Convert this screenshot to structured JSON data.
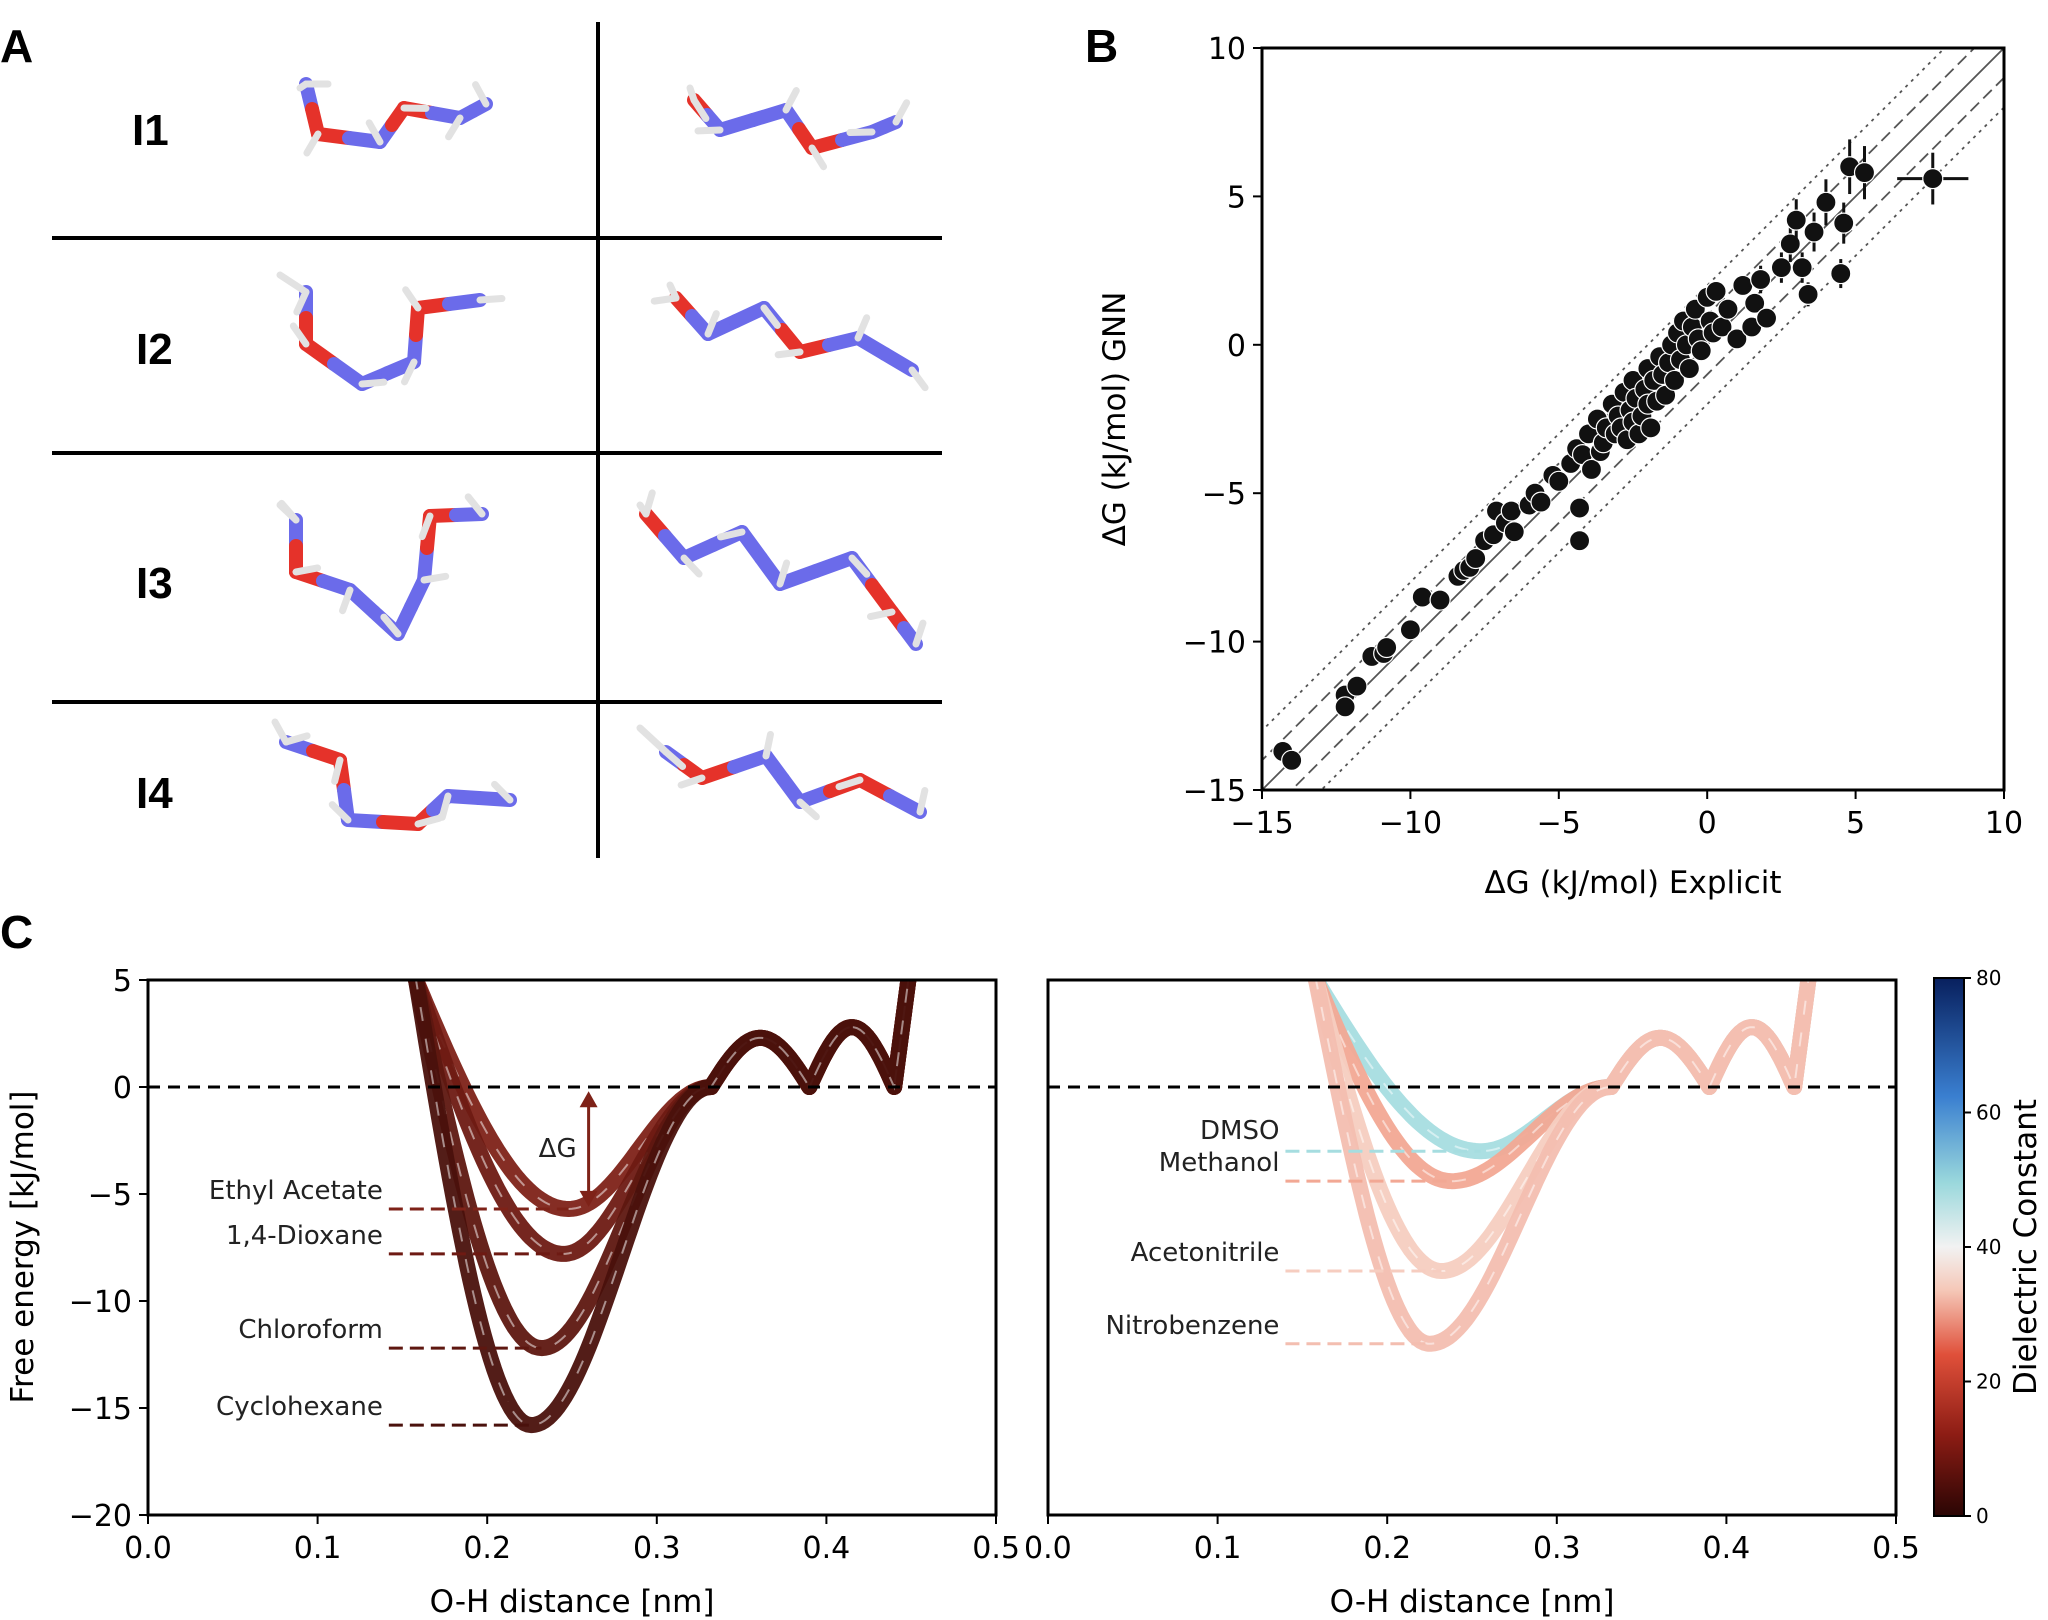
{
  "panels": {
    "a": "A",
    "b": "B",
    "c": "C"
  },
  "molecules": {
    "rows": [
      "I1",
      "I2",
      "I3",
      "I4"
    ],
    "colors": {
      "carbon": "#6b6bea",
      "oxygen": "#e5322a",
      "hydrogen": "#e2e2e2"
    }
  },
  "chart_data": [
    {
      "type": "scatter",
      "id": "B",
      "xlabel": "ΔG (kJ/mol) Explicit",
      "ylabel": "ΔG (kJ/mol) GNN",
      "xlim": [
        -15,
        10
      ],
      "ylim": [
        -15,
        10
      ],
      "xticks": [
        -15,
        -10,
        -5,
        0,
        5,
        10
      ],
      "yticks": [
        -15,
        -10,
        -5,
        0,
        5,
        10
      ],
      "xtick_labels": [
        "−15",
        "−10",
        "−5",
        "0",
        "5",
        "10"
      ],
      "ytick_labels": [
        "−15",
        "−10",
        "−5",
        "0",
        "5",
        "10"
      ],
      "reference_lines": {
        "identity": 0,
        "dashed_offset": 1,
        "dotted_offset": 2
      },
      "points": [
        [
          -14.3,
          -13.7
        ],
        [
          -14.0,
          -14.0
        ],
        [
          -12.2,
          -11.8
        ],
        [
          -12.2,
          -12.2
        ],
        [
          -11.8,
          -11.5
        ],
        [
          -11.3,
          -10.5
        ],
        [
          -10.9,
          -10.4
        ],
        [
          -10.8,
          -10.2
        ],
        [
          -10.0,
          -9.6
        ],
        [
          -9.6,
          -8.5
        ],
        [
          -9.0,
          -8.6
        ],
        [
          -8.4,
          -7.8
        ],
        [
          -8.2,
          -7.6
        ],
        [
          -8.0,
          -7.5
        ],
        [
          -7.8,
          -7.2
        ],
        [
          -7.5,
          -6.6
        ],
        [
          -7.2,
          -6.4
        ],
        [
          -7.1,
          -5.6
        ],
        [
          -6.8,
          -6.0
        ],
        [
          -6.6,
          -5.6
        ],
        [
          -6.5,
          -6.3
        ],
        [
          -6.0,
          -5.4
        ],
        [
          -5.8,
          -5.0
        ],
        [
          -5.6,
          -5.3
        ],
        [
          -5.2,
          -4.4
        ],
        [
          -5.0,
          -4.6
        ],
        [
          -4.6,
          -4.0
        ],
        [
          -4.4,
          -3.5
        ],
        [
          -4.3,
          -6.6
        ],
        [
          -4.3,
          -5.5
        ],
        [
          -4.2,
          -3.7
        ],
        [
          -4.0,
          -3.0
        ],
        [
          -3.9,
          -4.2
        ],
        [
          -3.7,
          -2.5
        ],
        [
          -3.6,
          -3.6
        ],
        [
          -3.5,
          -3.3
        ],
        [
          -3.4,
          -2.8
        ],
        [
          -3.2,
          -2.0
        ],
        [
          -3.1,
          -3.0
        ],
        [
          -3.0,
          -2.4
        ],
        [
          -2.9,
          -2.8
        ],
        [
          -2.8,
          -1.6
        ],
        [
          -2.7,
          -3.2
        ],
        [
          -2.6,
          -2.2
        ],
        [
          -2.5,
          -1.2
        ],
        [
          -2.5,
          -2.6
        ],
        [
          -2.4,
          -1.8
        ],
        [
          -2.3,
          -3.0
        ],
        [
          -2.2,
          -2.4
        ],
        [
          -2.1,
          -1.5
        ],
        [
          -2.0,
          -2.0
        ],
        [
          -2.0,
          -0.8
        ],
        [
          -1.9,
          -2.8
        ],
        [
          -1.8,
          -1.2
        ],
        [
          -1.7,
          -1.9
        ],
        [
          -1.6,
          -0.4
        ],
        [
          -1.5,
          -1.0
        ],
        [
          -1.4,
          -1.7
        ],
        [
          -1.3,
          -0.6
        ],
        [
          -1.2,
          0.0
        ],
        [
          -1.1,
          -1.2
        ],
        [
          -1.0,
          0.4
        ],
        [
          -0.9,
          -0.5
        ],
        [
          -0.8,
          0.8
        ],
        [
          -0.7,
          0.0
        ],
        [
          -0.6,
          -0.8
        ],
        [
          -0.5,
          0.6
        ],
        [
          -0.4,
          1.2
        ],
        [
          -0.3,
          0.2
        ],
        [
          -0.2,
          -0.2
        ],
        [
          0.0,
          1.6
        ],
        [
          0.1,
          0.8
        ],
        [
          0.2,
          0.4
        ],
        [
          0.3,
          1.8
        ],
        [
          0.5,
          0.6
        ],
        [
          0.7,
          1.2
        ],
        [
          1.0,
          0.2
        ],
        [
          1.2,
          2.0
        ],
        [
          1.5,
          0.6
        ],
        [
          1.6,
          1.4
        ],
        [
          1.8,
          2.2
        ],
        [
          2.0,
          0.9
        ],
        [
          2.5,
          2.6
        ],
        [
          2.8,
          3.4
        ],
        [
          3.0,
          4.2
        ],
        [
          3.2,
          2.6
        ],
        [
          3.4,
          1.7
        ],
        [
          3.6,
          3.8
        ],
        [
          4.0,
          4.8
        ],
        [
          4.5,
          2.4
        ],
        [
          4.6,
          4.1
        ],
        [
          4.8,
          6.0
        ],
        [
          5.3,
          5.8
        ],
        [
          7.6,
          5.6
        ]
      ]
    },
    {
      "type": "line",
      "id": "C-left",
      "xlabel": "O-H distance [nm]",
      "ylabel": "Free energy [kJ/mol]",
      "xlim": [
        0.0,
        0.5
      ],
      "ylim": [
        -20,
        5
      ],
      "xticks": [
        0.0,
        0.1,
        0.2,
        0.3,
        0.4,
        0.5
      ],
      "xtick_labels": [
        "0.0",
        "0.1",
        "0.2",
        "0.3",
        "0.4",
        "0.5"
      ],
      "yticks": [
        -20,
        -15,
        -10,
        -5,
        0,
        5
      ],
      "ytick_labels": [
        "−20",
        "−15",
        "−10",
        "−5",
        "0",
        "5"
      ],
      "annotation": "ΔG",
      "series": [
        {
          "name": "Ethyl Acetate",
          "min_x": 0.248,
          "min_y": -5.7,
          "color": "#7e2218"
        },
        {
          "name": "1,4-Dioxane",
          "min_x": 0.245,
          "min_y": -7.8,
          "color": "#6e1a13"
        },
        {
          "name": "Chloroform",
          "min_x": 0.232,
          "min_y": -12.2,
          "color": "#5e1710"
        },
        {
          "name": "Cyclohexane",
          "min_x": 0.226,
          "min_y": -15.8,
          "color": "#4a110c"
        }
      ]
    },
    {
      "type": "line",
      "id": "C-right",
      "xlabel": "O-H distance [nm]",
      "xlim": [
        0.0,
        0.5
      ],
      "ylim": [
        -20,
        5
      ],
      "xticks": [
        0.0,
        0.1,
        0.2,
        0.3,
        0.4,
        0.5
      ],
      "xtick_labels": [
        "0.0",
        "0.1",
        "0.2",
        "0.3",
        "0.4",
        "0.5"
      ],
      "series": [
        {
          "name": "DMSO",
          "min_x": 0.255,
          "min_y": -3.0,
          "color": "#a6dde0"
        },
        {
          "name": "Methanol",
          "min_x": 0.238,
          "min_y": -4.4,
          "color": "#f2a894"
        },
        {
          "name": "Acetonitrile",
          "min_x": 0.232,
          "min_y": -8.6,
          "color": "#f6cdc0"
        },
        {
          "name": "Nitrobenzene",
          "min_x": 0.225,
          "min_y": -12.0,
          "color": "#f3beb0"
        }
      ],
      "colorbar": {
        "label": "Dielectric Constant",
        "min": 0,
        "max": 80,
        "ticks": [
          0,
          20,
          40,
          60,
          80
        ],
        "tick_labels": [
          "0",
          "20",
          "40",
          "60",
          "80"
        ]
      }
    }
  ]
}
